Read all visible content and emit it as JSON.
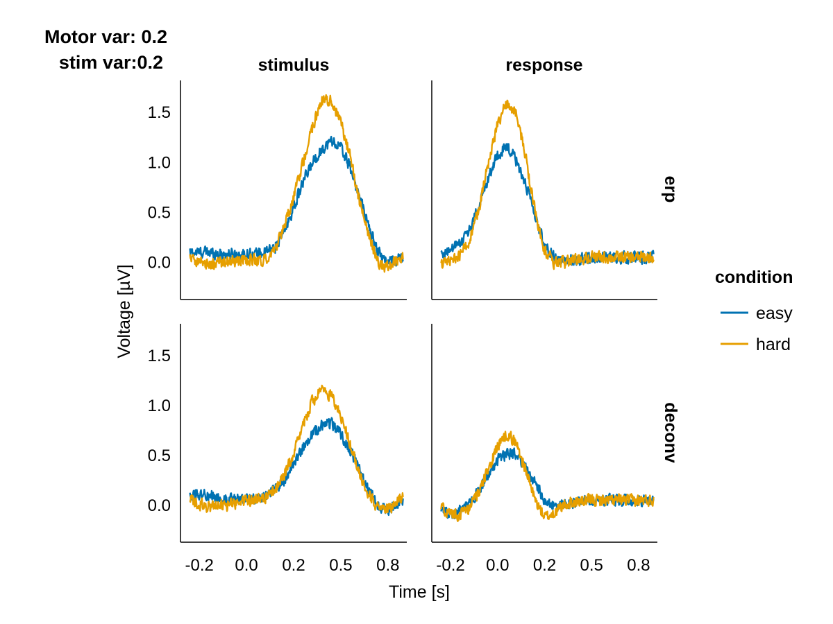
{
  "figure": {
    "title_line1": "Motor var: 0.2",
    "title_line2": "stim var:0.2",
    "xlabel": "Time [s]",
    "ylabel": "Voltage [µV]",
    "col_titles": [
      "stimulus",
      "response"
    ],
    "row_titles": [
      "erp",
      "deconv"
    ]
  },
  "legend": {
    "title": "condition",
    "items": [
      {
        "label": "easy",
        "color": "#0072B2"
      },
      {
        "label": "hard",
        "color": "#E69F00"
      }
    ]
  },
  "chart_data": {
    "type": "line",
    "xlim": [
      -0.35,
      0.85
    ],
    "ylim": [
      -0.37,
      1.82
    ],
    "x_ticks": [
      -0.25,
      0.0,
      0.25,
      0.5,
      0.75
    ],
    "x_tick_labels": [
      "-0.2",
      "0.0",
      "0.2",
      "0.5",
      "0.8"
    ],
    "y_ticks": [
      0.0,
      0.5,
      1.0,
      1.5
    ],
    "y_tick_labels": [
      "0.0",
      "0.5",
      "1.0",
      "1.5"
    ],
    "grid": false,
    "legend_position": "right",
    "panels": [
      {
        "row": "erp",
        "col": "stimulus",
        "series": [
          {
            "name": "easy",
            "color": "#0072B2",
            "x": [
              -0.3,
              -0.2,
              -0.1,
              0.0,
              0.1,
              0.15,
              0.2,
              0.25,
              0.3,
              0.35,
              0.4,
              0.45,
              0.5,
              0.55,
              0.6,
              0.65,
              0.7,
              0.75,
              0.8,
              0.83
            ],
            "y": [
              0.1,
              0.1,
              0.08,
              0.08,
              0.1,
              0.15,
              0.3,
              0.55,
              0.8,
              1.0,
              1.13,
              1.22,
              1.15,
              0.95,
              0.65,
              0.35,
              0.1,
              0.0,
              0.03,
              0.05
            ]
          },
          {
            "name": "hard",
            "color": "#E69F00",
            "x": [
              -0.3,
              -0.2,
              -0.1,
              0.0,
              0.1,
              0.15,
              0.2,
              0.25,
              0.3,
              0.35,
              0.4,
              0.45,
              0.5,
              0.55,
              0.6,
              0.65,
              0.7,
              0.75,
              0.8,
              0.83
            ],
            "y": [
              0.05,
              -0.02,
              0.0,
              0.02,
              0.03,
              0.12,
              0.35,
              0.65,
              1.0,
              1.35,
              1.62,
              1.62,
              1.4,
              1.05,
              0.6,
              0.25,
              0.0,
              -0.05,
              0.03,
              0.05
            ]
          }
        ]
      },
      {
        "row": "erp",
        "col": "response",
        "series": [
          {
            "name": "easy",
            "color": "#0072B2",
            "x": [
              -0.3,
              -0.25,
              -0.2,
              -0.15,
              -0.1,
              -0.05,
              0.0,
              0.05,
              0.1,
              0.15,
              0.2,
              0.25,
              0.3,
              0.35,
              0.4,
              0.5,
              0.6,
              0.7,
              0.8,
              0.83
            ],
            "y": [
              0.08,
              0.12,
              0.2,
              0.32,
              0.55,
              0.85,
              1.08,
              1.15,
              1.02,
              0.78,
              0.45,
              0.18,
              0.05,
              0.02,
              0.02,
              0.05,
              0.05,
              0.05,
              0.05,
              0.06
            ]
          },
          {
            "name": "hard",
            "color": "#E69F00",
            "x": [
              -0.3,
              -0.25,
              -0.2,
              -0.15,
              -0.1,
              -0.05,
              0.0,
              0.05,
              0.1,
              0.15,
              0.2,
              0.25,
              0.3,
              0.35,
              0.4,
              0.5,
              0.6,
              0.7,
              0.8,
              0.83
            ],
            "y": [
              -0.02,
              0.02,
              0.08,
              0.22,
              0.52,
              0.98,
              1.38,
              1.6,
              1.5,
              1.05,
              0.5,
              0.12,
              0.0,
              0.0,
              0.02,
              0.05,
              0.05,
              0.05,
              0.05,
              0.05
            ]
          }
        ]
      },
      {
        "row": "deconv",
        "col": "stimulus",
        "series": [
          {
            "name": "easy",
            "color": "#0072B2",
            "x": [
              -0.3,
              -0.2,
              -0.1,
              0.0,
              0.1,
              0.15,
              0.2,
              0.25,
              0.3,
              0.35,
              0.4,
              0.45,
              0.5,
              0.55,
              0.6,
              0.65,
              0.7,
              0.75,
              0.8,
              0.83
            ],
            "y": [
              0.12,
              0.1,
              0.06,
              0.06,
              0.1,
              0.15,
              0.25,
              0.4,
              0.58,
              0.72,
              0.8,
              0.82,
              0.72,
              0.55,
              0.35,
              0.15,
              0.0,
              -0.05,
              0.02,
              0.05
            ]
          },
          {
            "name": "hard",
            "color": "#E69F00",
            "x": [
              -0.3,
              -0.2,
              -0.1,
              0.0,
              0.1,
              0.15,
              0.2,
              0.25,
              0.3,
              0.35,
              0.4,
              0.45,
              0.5,
              0.55,
              0.6,
              0.65,
              0.7,
              0.75,
              0.8,
              0.83
            ],
            "y": [
              0.05,
              -0.02,
              0.0,
              0.05,
              0.08,
              0.14,
              0.3,
              0.52,
              0.8,
              1.05,
              1.15,
              1.1,
              0.9,
              0.62,
              0.32,
              0.1,
              -0.03,
              -0.05,
              0.05,
              0.08
            ]
          }
        ]
      },
      {
        "row": "deconv",
        "col": "response",
        "series": [
          {
            "name": "easy",
            "color": "#0072B2",
            "x": [
              -0.3,
              -0.25,
              -0.2,
              -0.15,
              -0.1,
              -0.05,
              0.0,
              0.05,
              0.1,
              0.15,
              0.2,
              0.25,
              0.3,
              0.35,
              0.4,
              0.5,
              0.6,
              0.7,
              0.8,
              0.83
            ],
            "y": [
              -0.05,
              -0.08,
              -0.05,
              0.02,
              0.15,
              0.3,
              0.45,
              0.52,
              0.5,
              0.38,
              0.22,
              0.05,
              -0.02,
              0.0,
              0.02,
              0.05,
              0.05,
              0.05,
              0.05,
              0.05
            ]
          },
          {
            "name": "hard",
            "color": "#E69F00",
            "x": [
              -0.3,
              -0.25,
              -0.2,
              -0.15,
              -0.1,
              -0.05,
              0.0,
              0.05,
              0.1,
              0.15,
              0.2,
              0.25,
              0.3,
              0.35,
              0.4,
              0.5,
              0.6,
              0.7,
              0.8,
              0.83
            ],
            "y": [
              -0.02,
              -0.08,
              -0.1,
              -0.02,
              0.12,
              0.35,
              0.6,
              0.72,
              0.62,
              0.35,
              0.05,
              -0.12,
              -0.08,
              0.0,
              0.03,
              0.05,
              0.05,
              0.05,
              0.05,
              0.05
            ]
          }
        ]
      }
    ]
  }
}
